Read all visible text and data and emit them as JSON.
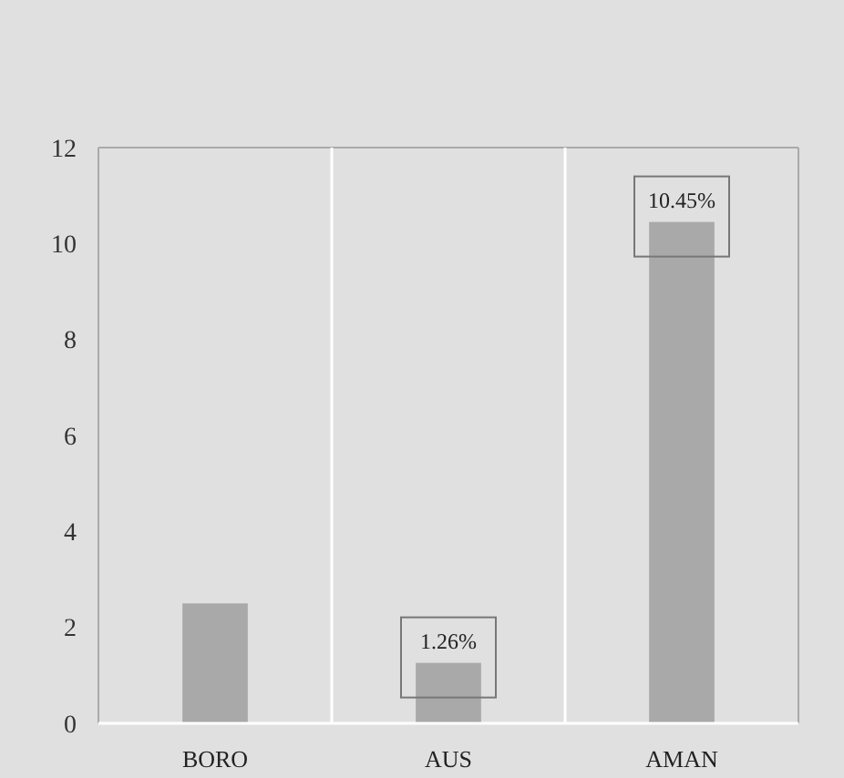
{
  "chart_data": {
    "type": "bar",
    "categories": [
      "BORO",
      "AUS",
      "AMAN"
    ],
    "values": [
      2.5,
      1.26,
      10.45
    ],
    "color": "#a9a9a9",
    "value_labels": [
      null,
      "1.26%",
      "10.45%"
    ],
    "ylim": [
      0,
      12
    ],
    "yticks": [
      0,
      2,
      4,
      6,
      8,
      10,
      12
    ],
    "grid": "x"
  }
}
